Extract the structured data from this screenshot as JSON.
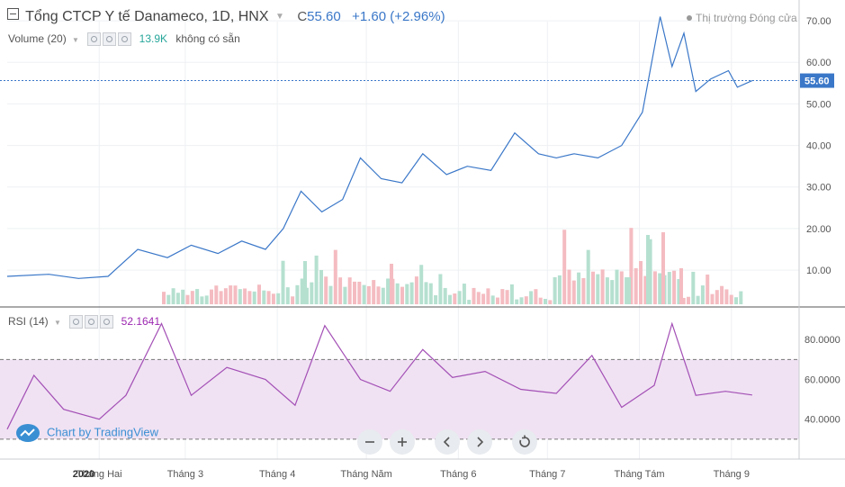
{
  "header": {
    "collapse_icon": "minus-box-icon",
    "symbol_title": "Tổng CTCP Y tế Danameco, 1D, HNX",
    "dropdown_icon": "chevron-down-icon",
    "close_prefix": "C",
    "close_value": "55.60",
    "change_text": "+1.60 (+2.96%)",
    "market_status": "Thị trường Đóng cửa",
    "market_dot_color": "#999999"
  },
  "volume_legend": {
    "label": "Volume (20)",
    "value": "13.9K",
    "value_color": "#26a69a",
    "note": "không có sẵn"
  },
  "rsi_legend": {
    "label": "RSI (14)",
    "value": "52.1641",
    "value_color": "#9c27b0"
  },
  "price_axis": {
    "ticks": [
      "70.00",
      "60.00",
      "50.00",
      "40.00",
      "30.00",
      "20.00",
      "10.00"
    ]
  },
  "last_price_label": "55.60",
  "rsi_axis": {
    "ticks": [
      "80.0000",
      "60.0000",
      "40.0000"
    ]
  },
  "time_axis": {
    "ticks": [
      "2020",
      "Tháng Hai",
      "Tháng 3",
      "Tháng 4",
      "Tháng Năm",
      "Tháng 6",
      "Tháng 7",
      "Tháng Tám",
      "Tháng 9"
    ]
  },
  "watermark": {
    "text": "Chart by TradingView",
    "icon": "cloud-icon"
  },
  "controls": [
    {
      "name": "zoom-out-button",
      "icon": "minus-icon"
    },
    {
      "name": "zoom-in-button",
      "icon": "plus-icon"
    },
    {
      "name": "scroll-left-button",
      "icon": "chevron-left-icon"
    },
    {
      "name": "scroll-right-button",
      "icon": "chevron-right-icon"
    },
    {
      "name": "reset-chart-button",
      "icon": "reset-icon"
    }
  ],
  "colors": {
    "price_line": "#3a77c8",
    "rsi_line": "#a34fb5",
    "rsi_band": "#f0e2f3",
    "volume_up": "#b5e0d0",
    "volume_down": "#f4bcc1",
    "last_price_bg": "#3a77c8",
    "grid": "#eef0f3"
  },
  "chart_data": [
    {
      "type": "line",
      "series": [
        {
          "x": [
            "2020-01-01",
            "2020-01-15",
            "2020-01-25",
            "2020-02-04",
            "2020-02-14",
            "2020-02-24",
            "2020-03-03",
            "2020-03-12",
            "2020-03-20",
            "2020-03-28",
            "2020-04-03",
            "2020-04-09",
            "2020-04-16",
            "2020-04-23",
            "2020-04-29",
            "2020-05-06",
            "2020-05-13",
            "2020-05-20",
            "2020-05-28",
            "2020-06-04",
            "2020-06-12",
            "2020-06-20",
            "2020-06-28",
            "2020-07-04",
            "2020-07-10",
            "2020-07-18",
            "2020-07-26",
            "2020-08-02",
            "2020-08-08",
            "2020-08-12",
            "2020-08-16",
            "2020-08-20",
            "2020-08-25",
            "2020-08-31",
            "2020-09-03",
            "2020-09-08"
          ],
          "values": [
            8.5,
            9,
            8,
            8.5,
            15,
            13,
            16,
            14,
            17,
            15,
            20,
            29,
            24,
            27,
            37,
            32,
            31,
            38,
            33,
            35,
            34,
            43,
            38,
            37,
            38,
            37,
            40,
            48,
            71,
            59,
            67,
            53,
            56,
            58,
            54,
            55.6
          ]
        }
      ],
      "ylim": [
        2,
        75
      ]
    },
    {
      "type": "bar",
      "series": [
        {
          "name": "Volume (20)"
        }
      ],
      "x": [
        "2020-02-01",
        "2020-03-01",
        "2020-04-01",
        "2020-05-01",
        "2020-06-01",
        "2020-07-01",
        "2020-08-01",
        "2020-08-10",
        "2020-09-01"
      ],
      "values": [
        0.5,
        0.6,
        1.3,
        1.3,
        0.3,
        0.3,
        1.8,
        2.0,
        0.5
      ]
    },
    {
      "type": "line",
      "series": [
        {
          "name": "RSI (14)",
          "x": [
            "2020-01-01",
            "2020-01-10",
            "2020-01-20",
            "2020-02-01",
            "2020-02-10",
            "2020-02-22",
            "2020-03-03",
            "2020-03-15",
            "2020-03-28",
            "2020-04-07",
            "2020-04-17",
            "2020-04-29",
            "2020-05-09",
            "2020-05-20",
            "2020-05-30",
            "2020-06-10",
            "2020-06-22",
            "2020-07-04",
            "2020-07-16",
            "2020-07-26",
            "2020-08-06",
            "2020-08-12",
            "2020-08-20",
            "2020-08-30",
            "2020-09-08"
          ],
          "values": [
            35,
            62,
            45,
            40,
            52,
            88,
            52,
            66,
            60,
            47,
            87,
            60,
            54,
            75,
            61,
            64,
            55,
            53,
            72,
            46,
            57,
            88,
            52,
            54,
            52.16
          ]
        }
      ],
      "ylim": [
        20,
        95
      ],
      "bands": [
        30,
        70
      ]
    }
  ]
}
